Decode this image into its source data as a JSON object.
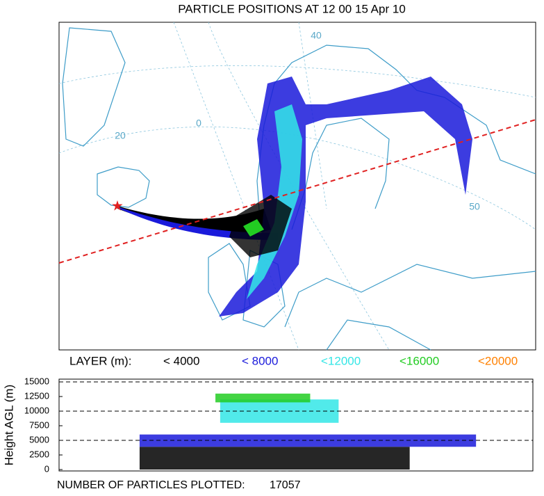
{
  "title": "PARTICLE POSITIONS AT 12 00  15 Apr 10",
  "map": {
    "graticule_labels": [
      "40",
      "0",
      "20",
      "50"
    ]
  },
  "legend": {
    "title": "LAYER (m):",
    "entries": [
      {
        "label": "< 4000",
        "color": "#000000"
      },
      {
        "label": "< 8000",
        "color": "#1a1adb"
      },
      {
        "label": "<12000",
        "color": "#33e6e6"
      },
      {
        "label": "<16000",
        "color": "#22cc22"
      },
      {
        "label": "<20000",
        "color": "#ff8000"
      }
    ]
  },
  "chart_data": {
    "type": "band",
    "ylabel": "Height AGL (m)",
    "ylim": [
      0,
      15000
    ],
    "yticks": [
      0,
      2500,
      5000,
      7500,
      10000,
      12500,
      15000
    ],
    "reference_lines": [
      5000,
      10000,
      15000
    ],
    "bands": [
      [
        0,
        3900
      ],
      [
        3900,
        6000
      ],
      [
        8000,
        12000
      ],
      [
        11500,
        13000
      ]
    ]
  },
  "footer": {
    "label": "NUMBER OF PARTICLES PLOTTED:",
    "count": 17057
  }
}
